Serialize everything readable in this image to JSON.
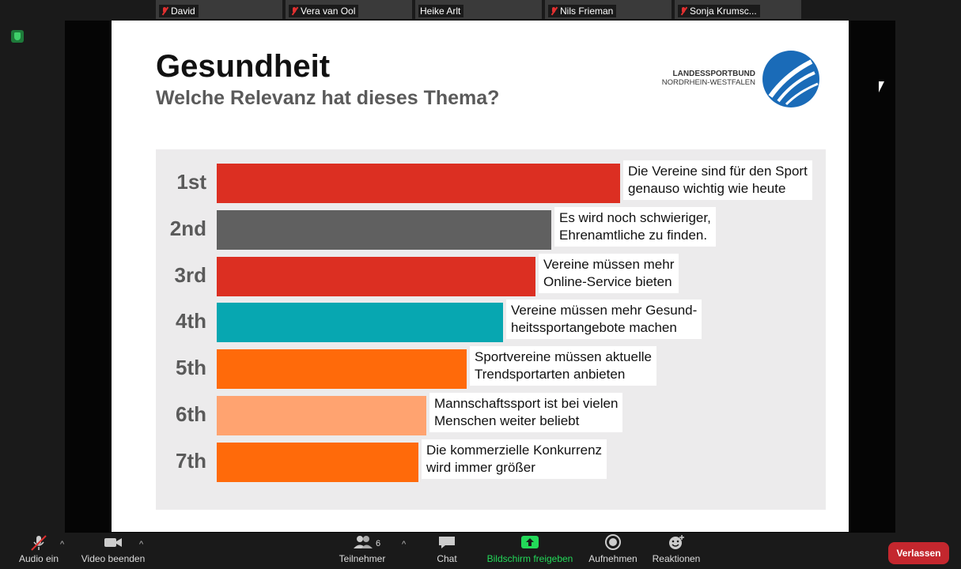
{
  "participants": [
    {
      "name": "David",
      "muted": true
    },
    {
      "name": "Vera van Ool",
      "muted": true
    },
    {
      "name": "Heike Arlt",
      "muted": false
    },
    {
      "name": "Nils Frieman",
      "muted": true
    },
    {
      "name": "Sonja Krumsc...",
      "muted": true
    }
  ],
  "slide": {
    "title": "Gesundheit",
    "subtitle": "Welche Relevanz hat dieses Thema?",
    "logo_line1": "LANDESSPORTBUND",
    "logo_line2": "NORDRHEIN-WESTFALEN"
  },
  "chart_data": {
    "type": "bar",
    "orientation": "horizontal",
    "title": "",
    "categories": [
      "1st",
      "2nd",
      "3rd",
      "4th",
      "5th",
      "6th",
      "7th"
    ],
    "labels": [
      [
        "Die Vereine sind für den Sport",
        "genauso wichtig wie heute"
      ],
      [
        "Es wird noch schwieriger,",
        "Ehrenamtliche zu finden."
      ],
      [
        "Vereine müssen mehr",
        "Online-Service bieten"
      ],
      [
        "Vereine müssen mehr Gesund-",
        "heitssportangebote machen"
      ],
      [
        "Sportvereine müssen aktuelle",
        "Trendsportarten anbieten"
      ],
      [
        "Mannschaftssport ist bei vielen",
        "Menschen weiter beliebt"
      ],
      [
        "Die kommerzielle Konkurrenz",
        "wird immer größer"
      ]
    ],
    "values": [
      100,
      83,
      79,
      71,
      62,
      52,
      50
    ],
    "colors": [
      "#dc2f22",
      "#606060",
      "#dc2f22",
      "#07a7b1",
      "#ff6a0a",
      "#ffa370",
      "#ff6a0a"
    ]
  },
  "toolbar": {
    "audio": "Audio ein",
    "video": "Video beenden",
    "participants": "Teilnehmer",
    "participants_count": "6",
    "chat": "Chat",
    "share": "Bildschirm freigeben",
    "record": "Aufnehmen",
    "reactions": "Reaktionen",
    "leave": "Verlassen",
    "share_color": "#23d959"
  }
}
